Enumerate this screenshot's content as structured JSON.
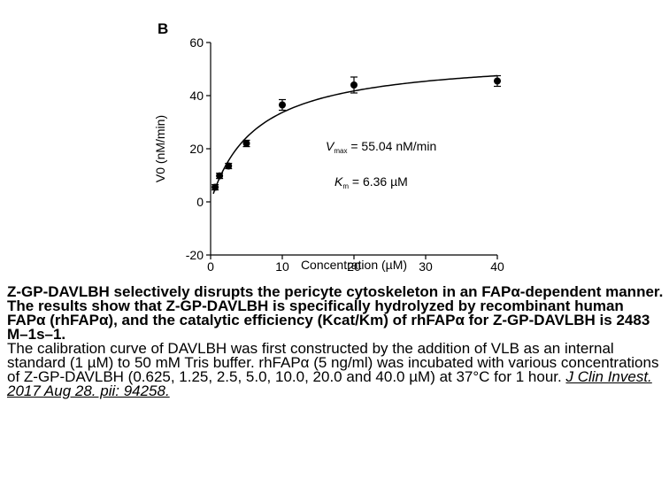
{
  "chart_data": {
    "type": "scatter",
    "panel_label": "B",
    "xlabel": "Concentration (µM)",
    "ylabel": "V0 (nM/min)",
    "xlim": [
      0,
      40
    ],
    "ylim": [
      -20,
      60
    ],
    "x_ticks": [
      0,
      10,
      20,
      30,
      40
    ],
    "y_ticks": [
      -20,
      0,
      20,
      40,
      60
    ],
    "grid": false,
    "points": [
      {
        "x": 0.625,
        "y": 5.5,
        "err": 1.0
      },
      {
        "x": 1.25,
        "y": 9.8,
        "err": 1.0
      },
      {
        "x": 2.5,
        "y": 13.5,
        "err": 1.0
      },
      {
        "x": 5.0,
        "y": 22.0,
        "err": 1.2
      },
      {
        "x": 10.0,
        "y": 36.5,
        "err": 2.0
      },
      {
        "x": 20.0,
        "y": 44.0,
        "err": 3.0
      },
      {
        "x": 40.0,
        "y": 45.5,
        "err": 2.0
      }
    ],
    "fit": {
      "model": "Michaelis-Menten",
      "vmax": 55.04,
      "km": 6.36
    },
    "annotations": {
      "vmax_symbol": "V",
      "vmax_sub": "max",
      "vmax_text": " = 55.04 nM/min",
      "km_symbol": "K",
      "km_sub": "m",
      "km_text": " = 6.36 µM"
    }
  },
  "caption": {
    "bold": "Z-GP-DAVLBH selectively disrupts the pericyte cytoskeleton in an FAPα-dependent manner. The results show that Z-GP-DAVLBH is specifically hydrolyzed by recombinant human FAPα (rhFAPα), and the catalytic efficiency (Kcat/Km) of rhFAPα for Z-GP-DAVLBH is 2483 M–1s–1.",
    "body": "The calibration curve of DAVLBH was first constructed by the addition of VLB as an internal standard (1 µM) to 50 mM Tris buffer. rhFAPα (5 ng/ml) was incubated with various concentrations of Z-GP-DAVLBH (0.625, 1.25, 2.5, 5.0, 10.0, 20.0 and 40.0 µM) at 37°C for 1 hour. ",
    "citation": "J Clin Invest. 2017 Aug 28. pii: 94258."
  }
}
